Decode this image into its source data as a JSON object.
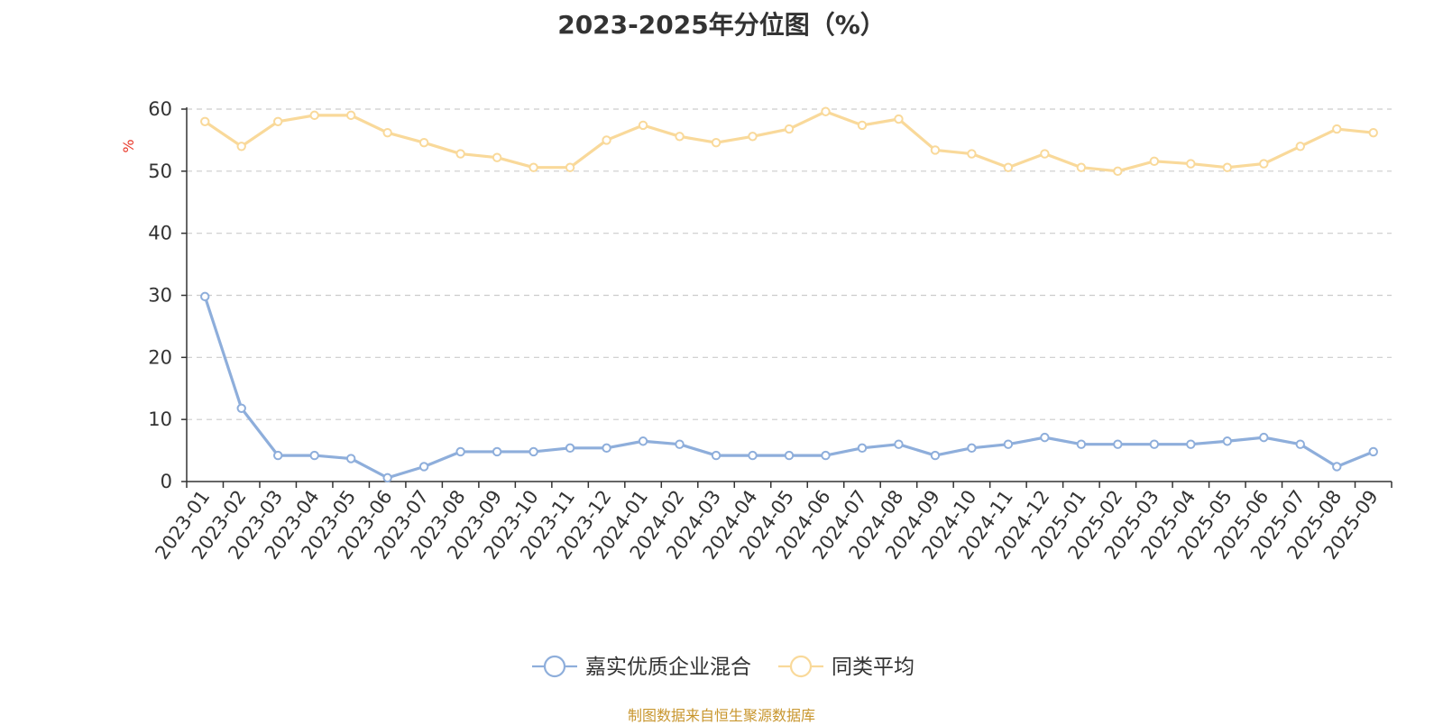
{
  "chart_data": {
    "type": "line",
    "title": "2023-2025年分位图（%）",
    "xlabel": "",
    "ylabel": "%",
    "ylim": [
      0,
      60
    ],
    "yticks": [
      0,
      10,
      20,
      30,
      40,
      50,
      60
    ],
    "grid": true,
    "legend_position": "bottom-center",
    "categories": [
      "2023-01",
      "2023-02",
      "2023-03",
      "2023-04",
      "2023-05",
      "2023-06",
      "2023-07",
      "2023-08",
      "2023-09",
      "2023-10",
      "2023-11",
      "2023-12",
      "2024-01",
      "2024-02",
      "2024-03",
      "2024-04",
      "2024-05",
      "2024-06",
      "2024-07",
      "2024-08",
      "2024-09",
      "2024-10",
      "2024-11",
      "2024-12",
      "2025-01",
      "2025-02",
      "2025-03",
      "2025-04",
      "2025-05",
      "2025-06",
      "2025-07",
      "2025-08",
      "2025-09"
    ],
    "series": [
      {
        "name": "嘉实优质企业混合",
        "color": "#8eaedb",
        "values": [
          29.8,
          11.8,
          4.2,
          4.2,
          3.7,
          0.6,
          2.4,
          4.8,
          4.8,
          4.8,
          5.4,
          5.4,
          6.5,
          6.0,
          4.2,
          4.2,
          4.2,
          4.2,
          5.4,
          6.0,
          4.2,
          5.4,
          6.0,
          7.1,
          6.0,
          6.0,
          6.0,
          6.0,
          6.5,
          7.1,
          6.0,
          2.4,
          4.8
        ]
      },
      {
        "name": "同类平均",
        "color": "#f9d99a",
        "values": [
          58.0,
          54.0,
          58.0,
          59.0,
          59.0,
          56.2,
          54.6,
          52.8,
          52.2,
          50.6,
          50.6,
          55.0,
          57.4,
          55.6,
          54.6,
          55.6,
          56.8,
          59.6,
          57.4,
          58.4,
          53.4,
          52.8,
          50.6,
          52.8,
          50.6,
          50.0,
          51.6,
          51.2,
          50.6,
          51.2,
          54.0,
          56.8,
          56.2
        ]
      }
    ]
  },
  "footer": {
    "source": "制图数据来自恒生聚源数据库"
  }
}
